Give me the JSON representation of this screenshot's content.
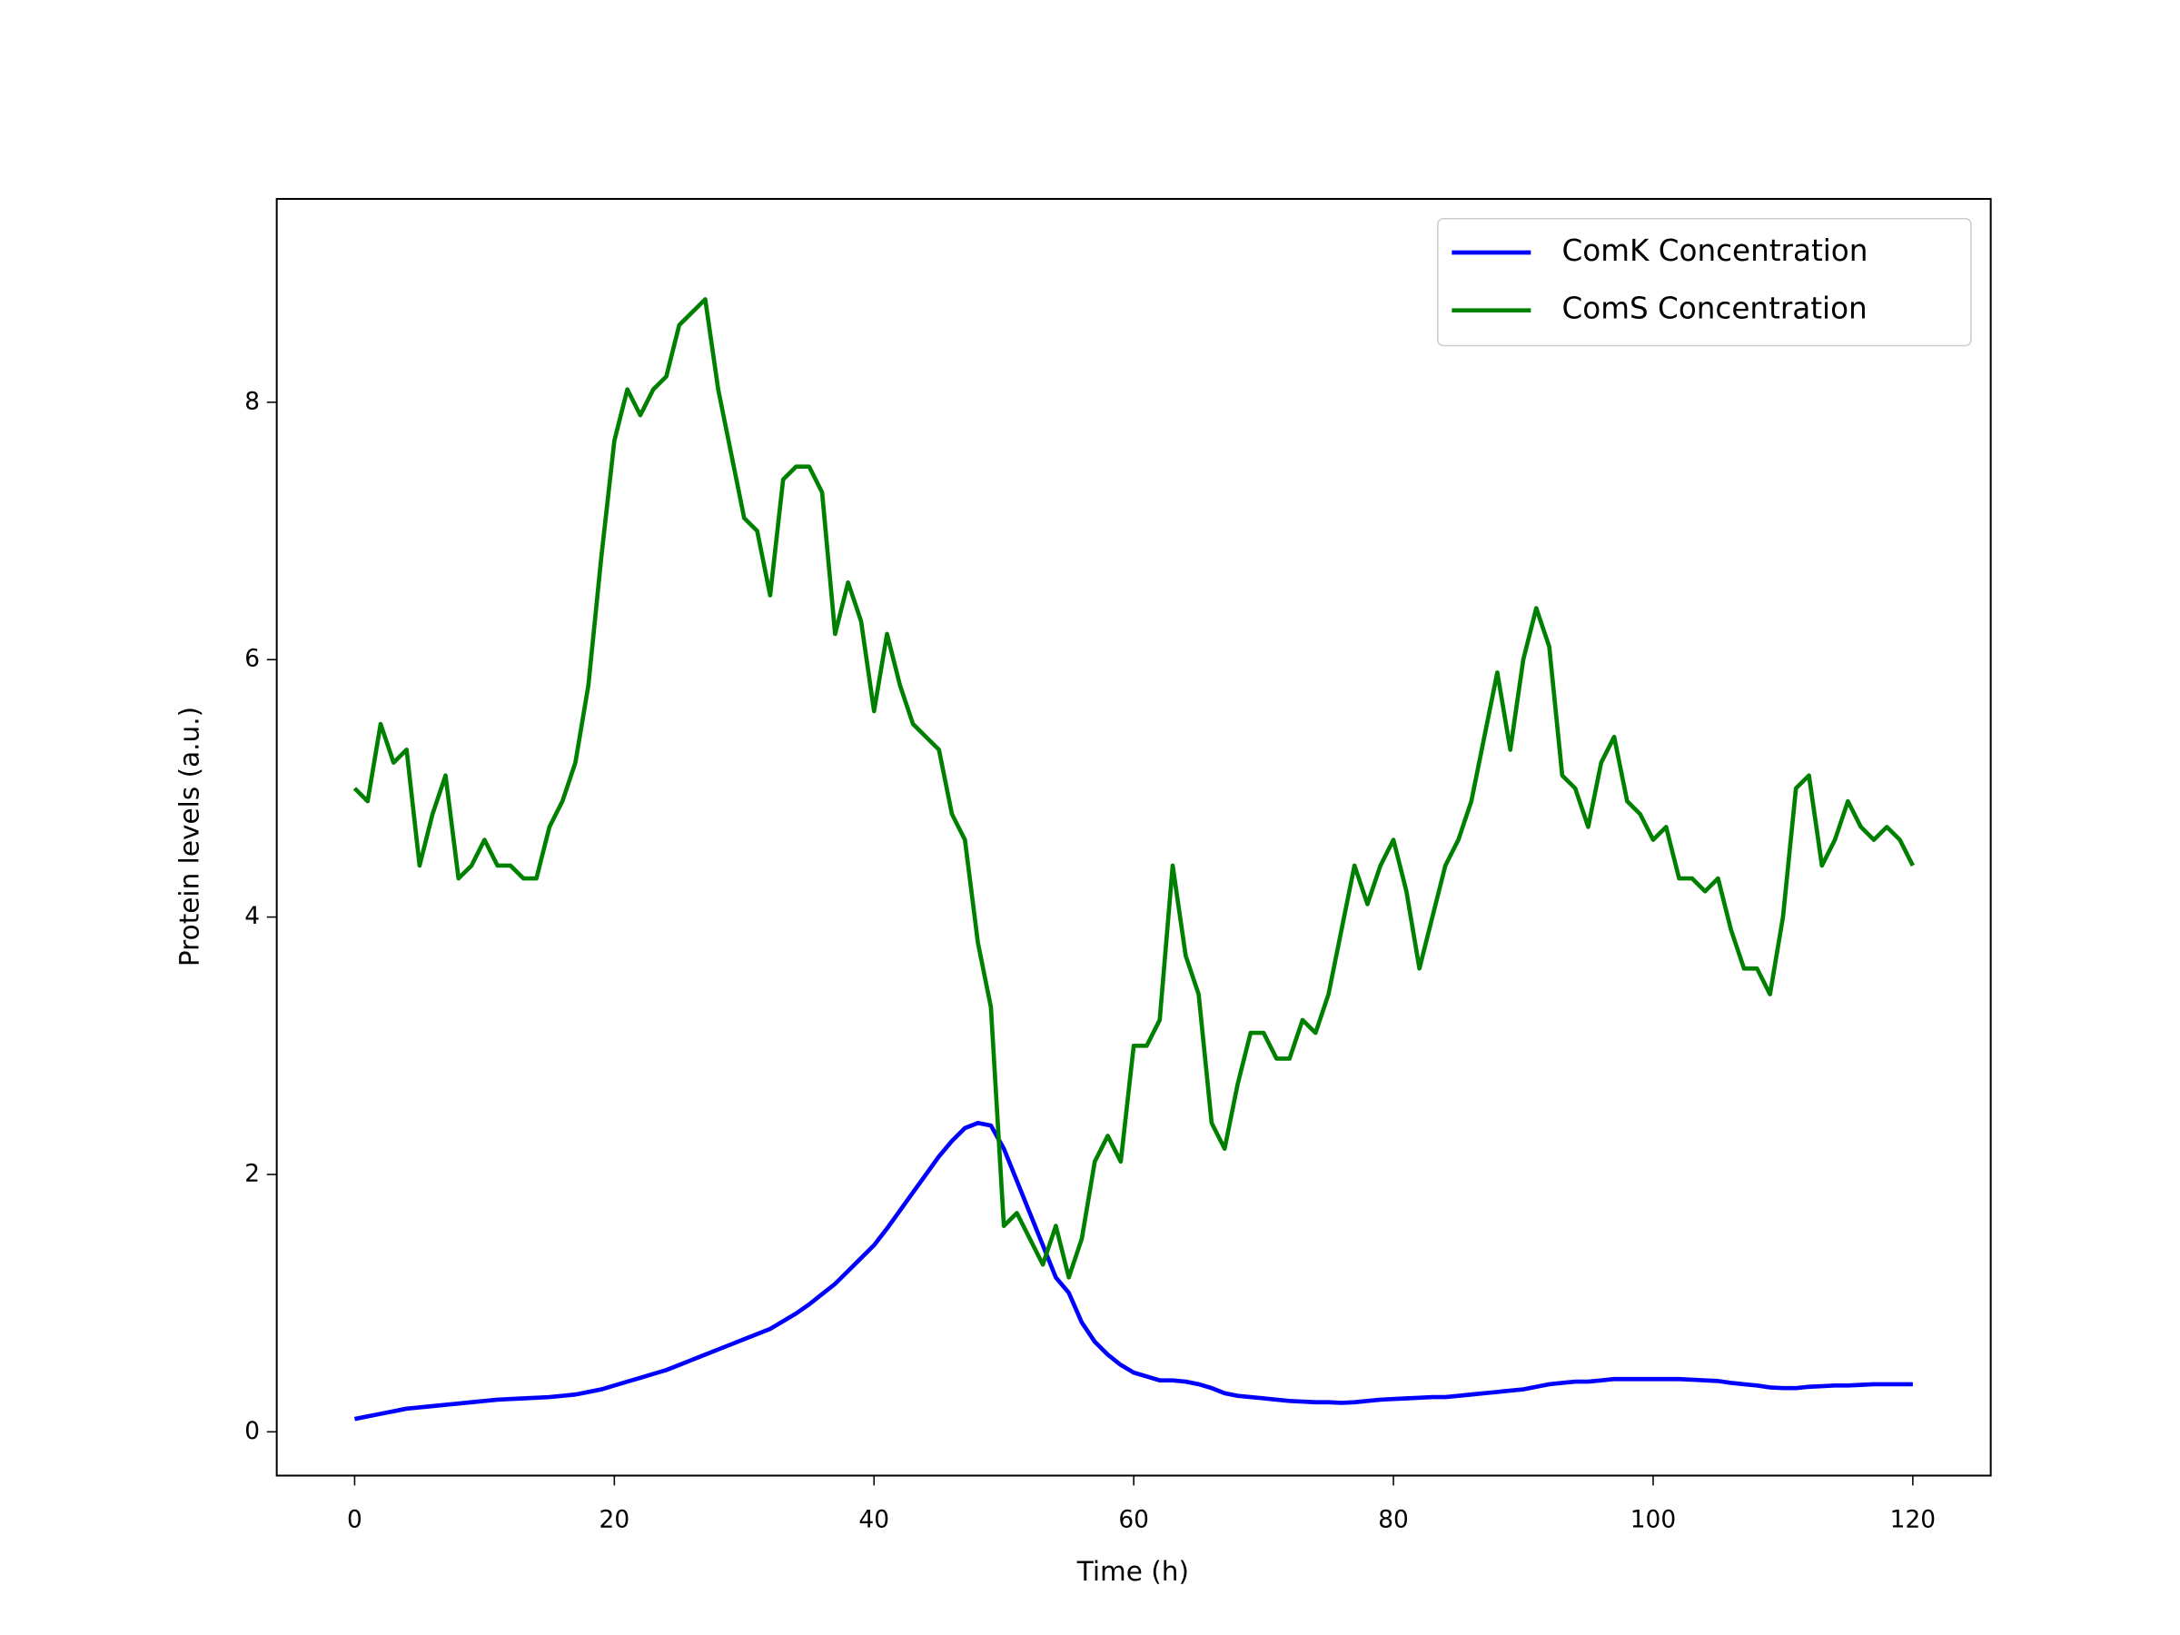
{
  "chart_data": {
    "type": "line",
    "xlabel": "Time (h)",
    "ylabel": "Protein levels (a.u.)",
    "x": [
      0,
      1,
      2,
      3,
      4,
      5,
      6,
      7,
      8,
      9,
      10,
      11,
      12,
      13,
      14,
      15,
      16,
      17,
      18,
      19,
      20,
      21,
      22,
      23,
      24,
      25,
      26,
      27,
      28,
      29,
      30,
      31,
      32,
      33,
      34,
      35,
      36,
      37,
      38,
      39,
      40,
      41,
      42,
      43,
      44,
      45,
      46,
      47,
      48,
      49,
      50,
      51,
      52,
      53,
      54,
      55,
      56,
      57,
      58,
      59,
      60,
      61,
      62,
      63,
      64,
      65,
      66,
      67,
      68,
      69,
      70,
      71,
      72,
      73,
      74,
      75,
      76,
      77,
      78,
      79,
      80,
      81,
      82,
      83,
      84,
      85,
      86,
      87,
      88,
      89,
      90,
      91,
      92,
      93,
      94,
      95,
      96,
      97,
      98,
      99,
      100,
      101,
      102,
      103,
      104,
      105,
      106,
      107,
      108,
      109,
      110,
      111,
      112,
      113,
      114,
      115,
      116,
      117,
      118,
      119,
      120
    ],
    "series": [
      {
        "name": "ComK Concentration",
        "color": "#0000ff",
        "values": [
          0.1,
          0.12,
          0.14,
          0.16,
          0.18,
          0.19,
          0.2,
          0.21,
          0.22,
          0.23,
          0.24,
          0.25,
          0.255,
          0.26,
          0.265,
          0.27,
          0.28,
          0.29,
          0.31,
          0.33,
          0.36,
          0.39,
          0.42,
          0.45,
          0.48,
          0.52,
          0.56,
          0.6,
          0.64,
          0.68,
          0.72,
          0.76,
          0.8,
          0.86,
          0.92,
          0.99,
          1.07,
          1.15,
          1.25,
          1.35,
          1.45,
          1.58,
          1.72,
          1.86,
          2.0,
          2.14,
          2.26,
          2.36,
          2.4,
          2.38,
          2.2,
          1.95,
          1.7,
          1.45,
          1.2,
          1.08,
          0.85,
          0.7,
          0.6,
          0.52,
          0.46,
          0.43,
          0.4,
          0.4,
          0.39,
          0.37,
          0.34,
          0.3,
          0.28,
          0.27,
          0.26,
          0.25,
          0.24,
          0.235,
          0.23,
          0.23,
          0.225,
          0.23,
          0.24,
          0.25,
          0.255,
          0.26,
          0.265,
          0.27,
          0.27,
          0.28,
          0.29,
          0.3,
          0.31,
          0.32,
          0.33,
          0.35,
          0.37,
          0.38,
          0.39,
          0.39,
          0.4,
          0.41,
          0.41,
          0.41,
          0.41,
          0.41,
          0.41,
          0.405,
          0.4,
          0.395,
          0.38,
          0.37,
          0.36,
          0.345,
          0.34,
          0.34,
          0.35,
          0.355,
          0.36,
          0.36,
          0.365,
          0.37,
          0.37,
          0.37,
          0.37
        ]
      },
      {
        "name": "ComS Concentration",
        "color": "#008000",
        "values": [
          5.0,
          4.9,
          5.5,
          5.2,
          5.3,
          4.4,
          4.8,
          5.1,
          4.3,
          4.4,
          4.6,
          4.4,
          4.4,
          4.3,
          4.3,
          4.7,
          4.9,
          5.2,
          5.8,
          6.8,
          7.7,
          8.1,
          7.9,
          8.1,
          8.2,
          8.6,
          8.7,
          8.8,
          8.1,
          7.6,
          7.1,
          7.0,
          6.5,
          7.4,
          7.5,
          7.5,
          7.3,
          6.2,
          6.6,
          6.3,
          5.6,
          6.2,
          5.8,
          5.5,
          5.4,
          5.3,
          4.8,
          4.6,
          3.8,
          3.3,
          1.6,
          1.7,
          1.5,
          1.3,
          1.6,
          1.2,
          1.5,
          2.1,
          2.3,
          2.1,
          3.0,
          3.0,
          3.2,
          4.4,
          3.7,
          3.4,
          2.4,
          2.2,
          2.7,
          3.1,
          3.1,
          2.9,
          2.9,
          3.2,
          3.1,
          3.4,
          3.9,
          4.4,
          4.1,
          4.4,
          4.6,
          4.2,
          3.6,
          4.0,
          4.4,
          4.6,
          4.9,
          5.4,
          5.9,
          5.3,
          6.0,
          6.4,
          6.1,
          5.1,
          5.0,
          4.7,
          5.2,
          5.4,
          4.9,
          4.8,
          4.6,
          4.7,
          4.3,
          4.3,
          4.2,
          4.3,
          3.9,
          3.6,
          3.6,
          3.4,
          4.0,
          5.0,
          5.1,
          4.4,
          4.6,
          4.9,
          4.7,
          4.6,
          4.7,
          4.6,
          4.4
        ]
      }
    ],
    "xlim": [
      -6,
      126
    ],
    "ylim": [
      -0.34,
      9.58
    ],
    "xticks": [
      0,
      20,
      40,
      60,
      80,
      100,
      120
    ],
    "yticks": [
      0,
      2,
      4,
      6,
      8
    ],
    "legend": "upper right"
  }
}
